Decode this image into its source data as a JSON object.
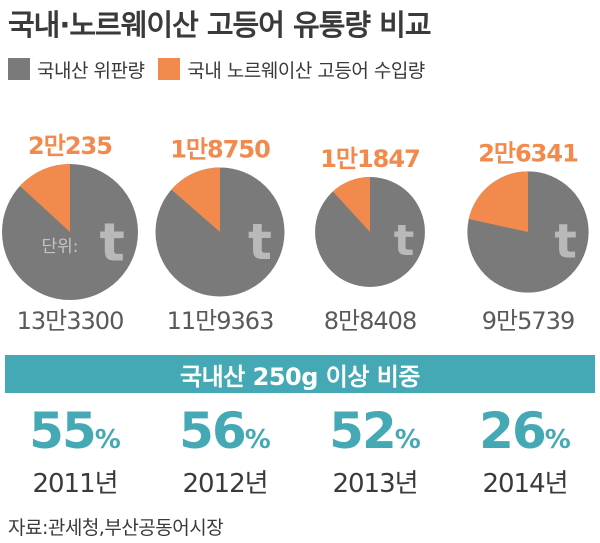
{
  "title": "국내·노르웨이산 고등어 유통량 비교",
  "legend": {
    "domestic_label": "국내산 위판량",
    "import_label": "국내 노르웨이산 고등어 수입량"
  },
  "colors": {
    "domestic": "#7a7a7a",
    "import": "#f28a4d",
    "accent": "#44a8b5",
    "text": "#3a3a3a"
  },
  "unit_note": "단위:",
  "unit_symbol": "t",
  "chart_data": {
    "type": "pie",
    "series": [
      {
        "name": "국내산 위판량",
        "values": [
          133300,
          119363,
          88408,
          95739
        ]
      },
      {
        "name": "국내 노르웨이산 고등어 수입량",
        "values": [
          20235,
          18750,
          11847,
          26341
        ]
      }
    ],
    "categories": [
      "2011년",
      "2012년",
      "2013년",
      "2014년"
    ],
    "domestic_labels": [
      "13만3300",
      "11만9363",
      "8만8408",
      "9만5739"
    ],
    "import_labels": [
      "2만235",
      "1만8750",
      "1만1847",
      "2만6341"
    ]
  },
  "share": {
    "banner": "국내산 250g 이상 비중",
    "values": [
      "55",
      "56",
      "52",
      "26"
    ],
    "unit": "%",
    "years": [
      "2011년",
      "2012년",
      "2013년",
      "2014년"
    ]
  },
  "source": "자료:관세청,부산공동어시장"
}
